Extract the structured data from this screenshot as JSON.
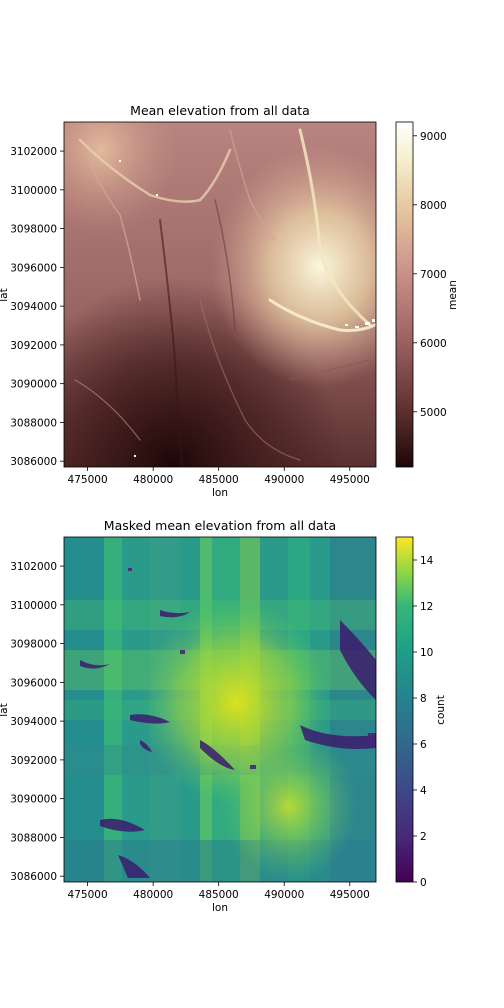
{
  "chart_data": [
    {
      "type": "heatmap",
      "title": "Mean elevation from all data",
      "xlabel": "lon",
      "ylabel": "lat",
      "xlim": [
        473200,
        497000
      ],
      "ylim": [
        3085700,
        3103500
      ],
      "x_ticks": [
        475000,
        480000,
        485000,
        490000,
        495000
      ],
      "x_tick_labels": [
        "475000",
        "480000",
        "485000",
        "490000",
        "495000"
      ],
      "y_ticks": [
        3086000,
        3088000,
        3090000,
        3092000,
        3094000,
        3096000,
        3098000,
        3100000,
        3102000
      ],
      "y_tick_labels": [
        "3086000",
        "3088000",
        "3090000",
        "3092000",
        "3094000",
        "3096000",
        "3098000",
        "3100000",
        "3102000"
      ],
      "colorbar": {
        "label": "mean",
        "colormap": "pink/terrain (dark brown to cream)",
        "range": [
          4200,
          9200
        ],
        "ticks": [
          5000,
          6000,
          7000,
          8000,
          9000
        ],
        "tick_labels": [
          "5000",
          "6000",
          "7000",
          "8000",
          "9000"
        ],
        "colors": [
          "#2a0a0a",
          "#5c2f2f",
          "#9a6060",
          "#c98d86",
          "#e8c79e",
          "#f7f2d2",
          "#ffffff"
        ]
      }
    },
    {
      "type": "heatmap",
      "title": "Masked mean elevation from all data",
      "xlabel": "lon",
      "ylabel": "lat",
      "xlim": [
        473200,
        497000
      ],
      "ylim": [
        3085700,
        3103500
      ],
      "x_ticks": [
        475000,
        480000,
        485000,
        490000,
        495000
      ],
      "x_tick_labels": [
        "475000",
        "480000",
        "485000",
        "490000",
        "495000"
      ],
      "y_ticks": [
        3086000,
        3088000,
        3090000,
        3092000,
        3094000,
        3096000,
        3098000,
        3100000,
        3102000
      ],
      "y_tick_labels": [
        "3086000",
        "3088000",
        "3090000",
        "3092000",
        "3094000",
        "3096000",
        "3098000",
        "3100000",
        "3102000"
      ],
      "colorbar": {
        "label": "count",
        "colormap": "viridis",
        "range": [
          0,
          15
        ],
        "ticks": [
          0,
          2,
          4,
          6,
          8,
          10,
          12,
          14
        ],
        "tick_labels": [
          "0",
          "2",
          "4",
          "6",
          "8",
          "10",
          "12",
          "14"
        ],
        "colors": [
          "#440154",
          "#3b528b",
          "#21918c",
          "#5ec962",
          "#fde725"
        ]
      }
    }
  ]
}
